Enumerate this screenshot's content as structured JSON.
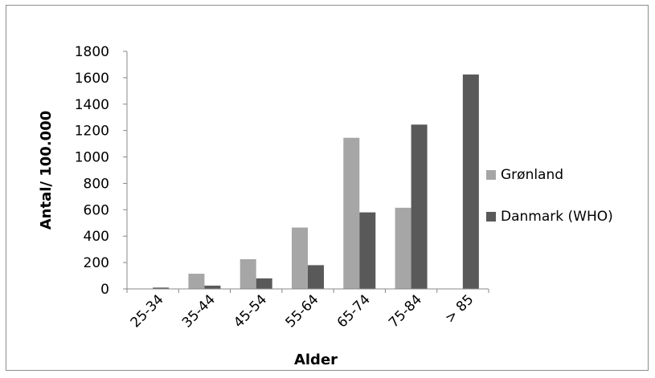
{
  "chart_data": {
    "type": "bar",
    "categories": [
      "25-34",
      "35-44",
      "45-54",
      "55-64",
      "65-74",
      "75-84",
      "> 85"
    ],
    "series": [
      {
        "name": "Grønland",
        "color": "#a6a6a6",
        "values": [
          0,
          115,
          225,
          465,
          1145,
          615,
          0
        ]
      },
      {
        "name": "Danmark (WHO)",
        "color": "#595959",
        "values": [
          10,
          25,
          80,
          180,
          580,
          1245,
          1625
        ]
      }
    ],
    "yticks": [
      0,
      200,
      400,
      600,
      800,
      1000,
      1200,
      1400,
      1600,
      1800
    ],
    "ylim": [
      0,
      1800
    ],
    "xlabel": "Alder",
    "ylabel": "Antal/ 100.000",
    "grid": false,
    "legend_position": "right"
  }
}
